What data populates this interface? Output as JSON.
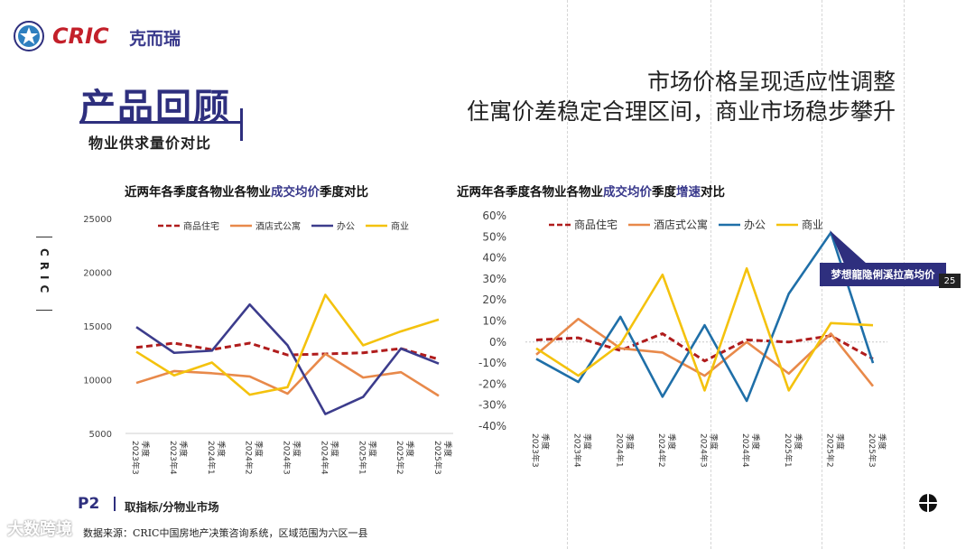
{
  "header": {
    "brand": "CRIC",
    "brand_cn": "克而瑞",
    "hero_title": "产品回顾",
    "subtitle": "物业供求量价对比",
    "headline_line1": "市场价格呈现适应性调整",
    "headline_line2": "住寓价差稳定合理区间，商业市场稳步攀升",
    "side_text": "CRIC"
  },
  "footer": {
    "page_number": "P2",
    "page_label": "取指标/分物业市场",
    "source": "数据来源：CRIC中国房地产决策咨询系统，区域范围为六区一县",
    "watermark": "大数跨境"
  },
  "tooltip": {
    "label": "梦想龍隐俐溪拉高均价",
    "value": "25"
  },
  "colors": {
    "residential": "#b01c1c",
    "apartment": "#e8894a",
    "office_left": "#3c3c8c",
    "office_right": "#1f6fa8",
    "commercial": "#f4c20d",
    "brand_red": "#c3202a",
    "brand_navy": "#2e2f7e"
  },
  "chart_data": [
    {
      "type": "line",
      "title_pre": "近两年各季度各物业各物业",
      "title_hl": "成交均价",
      "title_post": "季度对比",
      "categories": [
        "2023年3季度",
        "2023年4季度",
        "2024年1季度",
        "2024年2季度",
        "2024年3季度",
        "2024年4季度",
        "2025年1季度",
        "2025年2季度",
        "2025年3季度"
      ],
      "tick_labels": [
        "2023年3",
        "2023年4",
        "2024年1",
        "2024年2",
        "2024年3",
        "2024年4",
        "2025年1",
        "2025年2",
        "2025年3"
      ],
      "ylim": [
        5000,
        25000
      ],
      "yticks": [
        "5000",
        "10000",
        "15000",
        "20000",
        "25000"
      ],
      "series": [
        {
          "name": "商品住宅",
          "values": [
            13000,
            13400,
            12800,
            13400,
            12300,
            12400,
            12500,
            12900,
            11900
          ]
        },
        {
          "name": "酒店式公寓",
          "values": [
            9700,
            10800,
            10600,
            10300,
            8700,
            12400,
            10200,
            10700,
            8500
          ]
        },
        {
          "name": "办公",
          "values": [
            14900,
            12500,
            12700,
            17000,
            13200,
            6800,
            8400,
            12900,
            11500
          ]
        },
        {
          "name": "商业",
          "values": [
            12600,
            10400,
            11600,
            8600,
            9300,
            17900,
            13200,
            14500,
            15600
          ]
        }
      ]
    },
    {
      "type": "line",
      "title_pre": "近两年各季度各物业各物业",
      "title_hl": "成交均价",
      "title_mid": "季度",
      "title_hl2": "增速",
      "title_post": "对比",
      "categories": [
        "2023年3季度",
        "2023年4季度",
        "2024年1季度",
        "2024年2季度",
        "2024年3季度",
        "2024年4季度",
        "2025年1季度",
        "2025年2季度",
        "2025年3季度"
      ],
      "tick_labels": [
        "2023年3",
        "2023年4",
        "2024年1",
        "2024年2",
        "2024年3",
        "2024年4",
        "2025年1",
        "2025年2",
        "2025年3"
      ],
      "ylim": [
        -40,
        60
      ],
      "yticks": [
        "-40%",
        "-30%",
        "-20%",
        "-10%",
        "0%",
        "10%",
        "20%",
        "30%",
        "40%",
        "50%",
        "60%"
      ],
      "series": [
        {
          "name": "商品住宅",
          "values": [
            1,
            2,
            -4,
            4,
            -9,
            1,
            0,
            3,
            -8
          ]
        },
        {
          "name": "酒店式公寓",
          "values": [
            -6,
            11,
            -3,
            -5,
            -16,
            0,
            -15,
            4,
            -21
          ]
        },
        {
          "name": "办公",
          "values": [
            -8,
            -19,
            12,
            -26,
            8,
            -28,
            23,
            52,
            -10
          ]
        },
        {
          "name": "商业",
          "values": [
            -3,
            -16,
            -1,
            32,
            -23,
            35,
            -23,
            9,
            8
          ]
        }
      ]
    }
  ]
}
